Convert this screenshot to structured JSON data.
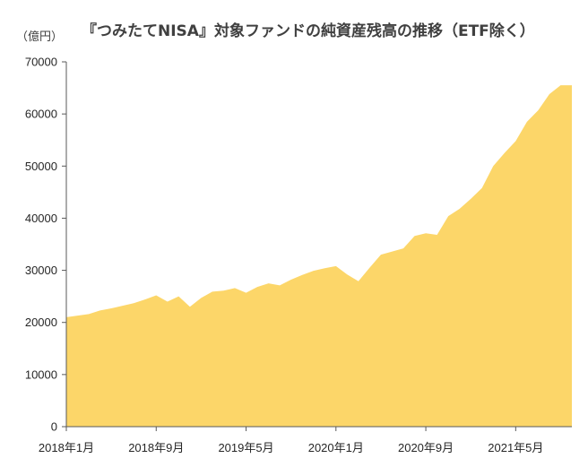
{
  "chart_data": {
    "type": "area",
    "title": "『つみたてNISA』対象ファンドの純資産残高の推移（ETF除く）",
    "ylabel": "（億円）",
    "xlabel": "",
    "ylim": [
      0,
      70000
    ],
    "yticks": [
      0,
      10000,
      20000,
      30000,
      40000,
      50000,
      60000,
      70000
    ],
    "xlim": [
      "2018-01",
      "2021-10"
    ],
    "xticks": [
      {
        "x": "2018-01",
        "label": "2018年1月"
      },
      {
        "x": "2018-09",
        "label": "2018年9月"
      },
      {
        "x": "2019-05",
        "label": "2019年5月"
      },
      {
        "x": "2020-01",
        "label": "2020年1月"
      },
      {
        "x": "2020-09",
        "label": "2020年9月"
      },
      {
        "x": "2021-05",
        "label": "2021年5月"
      }
    ],
    "grid": false,
    "series": [
      {
        "color": "#FCD669",
        "x": [
          "2018-01",
          "2018-02",
          "2018-03",
          "2018-04",
          "2018-05",
          "2018-06",
          "2018-07",
          "2018-08",
          "2018-09",
          "2018-10",
          "2018-11",
          "2018-12",
          "2019-01",
          "2019-02",
          "2019-03",
          "2019-04",
          "2019-05",
          "2019-06",
          "2019-07",
          "2019-08",
          "2019-09",
          "2019-10",
          "2019-11",
          "2019-12",
          "2020-01",
          "2020-02",
          "2020-03",
          "2020-04",
          "2020-05",
          "2020-06",
          "2020-07",
          "2020-08",
          "2020-09",
          "2020-10",
          "2020-11",
          "2020-12",
          "2021-01",
          "2021-02",
          "2021-03",
          "2021-04",
          "2021-05",
          "2021-06",
          "2021-07",
          "2021-08",
          "2021-09",
          "2021-10"
        ],
        "values": [
          21000,
          21300,
          21600,
          22300,
          22700,
          23200,
          23700,
          24400,
          25200,
          24000,
          25000,
          23000,
          24700,
          25900,
          26100,
          26600,
          25700,
          26800,
          27500,
          27100,
          28200,
          29100,
          29900,
          30400,
          30800,
          29200,
          27900,
          30500,
          33000,
          33600,
          34200,
          36600,
          37100,
          36800,
          40400,
          41800,
          43700,
          45800,
          50000,
          52500,
          54800,
          58500,
          60700,
          63800,
          65500,
          65500
        ]
      }
    ]
  }
}
